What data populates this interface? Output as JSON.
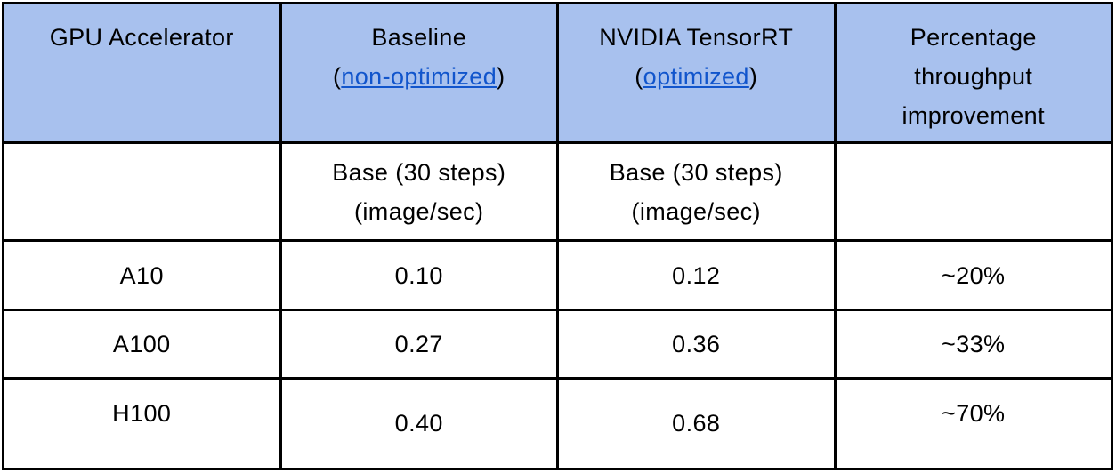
{
  "colors": {
    "header_bg": "#a8c1ee",
    "link_color": "#1155cc",
    "border_color": "#000000",
    "text_color": "#000000"
  },
  "table": {
    "header": {
      "gpu": "GPU Accelerator",
      "baseline": {
        "title": "Baseline",
        "paren_open": "(",
        "link_label": "non-optimized",
        "paren_close": ")"
      },
      "tensorrt": {
        "title": "NVIDIA TensorRT",
        "paren_open": "(",
        "link_label": "optimized",
        "paren_close": ")"
      },
      "improvement": "Percentage throughput improvement"
    },
    "subheader": {
      "baseline": {
        "line1": "Base (30 steps)",
        "line2": "(image/sec)"
      },
      "tensorrt": {
        "line1": "Base (30 steps)",
        "line2": "(image/sec)"
      }
    },
    "rows": [
      {
        "gpu": "A10",
        "baseline": "0.10",
        "tensorrt": "0.12",
        "improvement": "~20%"
      },
      {
        "gpu": "A100",
        "baseline": "0.27",
        "tensorrt": "0.36",
        "improvement": "~33%"
      },
      {
        "gpu": "H100",
        "baseline": "0.40",
        "tensorrt": "0.68",
        "improvement": "~70%"
      }
    ]
  },
  "chart_data": {
    "type": "table",
    "title": "",
    "columns": [
      "GPU Accelerator",
      "Baseline (non-optimized) Base (30 steps) (image/sec)",
      "NVIDIA TensorRT (optimized) Base (30 steps) (image/sec)",
      "Percentage throughput improvement"
    ],
    "rows": [
      [
        "A10",
        0.1,
        0.12,
        "~20%"
      ],
      [
        "A100",
        0.27,
        0.36,
        "~33%"
      ],
      [
        "H100",
        0.4,
        0.68,
        "~70%"
      ]
    ]
  }
}
